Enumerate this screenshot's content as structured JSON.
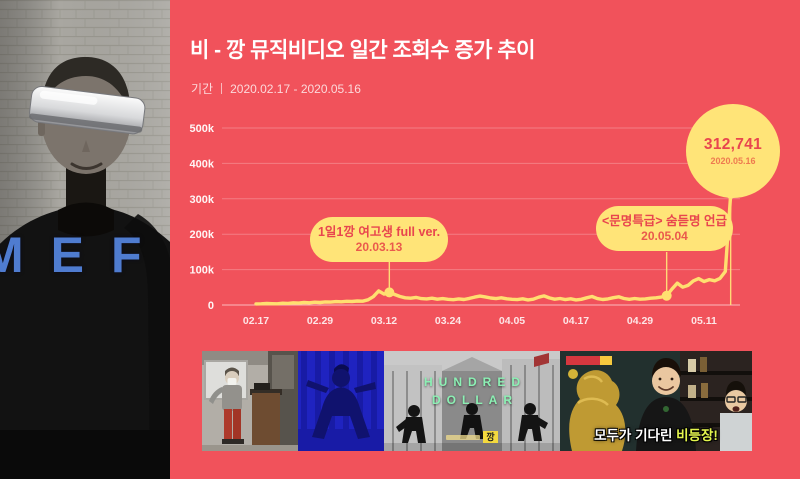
{
  "header": {
    "title": "비 - 깡 뮤직비디오 일간 조회수 증가 추이",
    "period_label": "기간",
    "period_value": "2020.02.17 - 2020.05.16"
  },
  "left_panel": {
    "overlay_letters": "MEF"
  },
  "chart_data": {
    "type": "line",
    "title": "비 - 깡 뮤직비디오 일간 조회수 증가 추이",
    "x_start_date": "2020.02.17",
    "x_end_date": "2020.05.16",
    "x_unit": "day offset from 2020.02.17",
    "x_tick_labels": [
      "02.17",
      "02.29",
      "03.12",
      "03.24",
      "04.05",
      "04.17",
      "04.29",
      "05.11"
    ],
    "x_tick_days": [
      0,
      12,
      24,
      36,
      48,
      60,
      72,
      84
    ],
    "y_tick_labels": [
      "0",
      "100k",
      "200k",
      "300k",
      "400k",
      "500k"
    ],
    "ylim": [
      0,
      500000
    ],
    "grid": true,
    "series": [
      {
        "name": "daily views",
        "values": [
          3200,
          3400,
          4100,
          3800,
          3500,
          5200,
          4600,
          6100,
          5400,
          7000,
          6300,
          7800,
          7200,
          8800,
          8100,
          9600,
          8900,
          10500,
          9800,
          11200,
          10600,
          14800,
          23500,
          39800,
          30900,
          35600,
          29800,
          24100,
          20300,
          19200,
          21400,
          18200,
          17100,
          19300,
          16400,
          18100,
          16200,
          15100,
          17300,
          15400,
          18600,
          22400,
          25100,
          22800,
          19900,
          18100,
          20200,
          17400,
          16100,
          15200,
          17500,
          14300,
          16400,
          21900,
          25800,
          20100,
          16300,
          18400,
          15200,
          17600,
          14400,
          16200,
          20300,
          24100,
          18200,
          15400,
          17300,
          20600,
          23200,
          18400,
          16100,
          18300,
          16400,
          17200,
          19100,
          20400,
          22300,
          26200,
          45300,
          61800,
          50200,
          55400,
          68100,
          74600,
          66300,
          71800,
          68400,
          75200,
          94700,
          312741
        ]
      }
    ],
    "annotations": [
      {
        "type": "callout",
        "lines": [
          "1일1깡 여고생 full ver.",
          "20.03.13"
        ],
        "day": 25,
        "date": "2020.03.13"
      },
      {
        "type": "callout",
        "lines": [
          "<문명특급> 숨듣명 언급",
          "20.05.04"
        ],
        "day": 77,
        "date": "2020.05.04"
      },
      {
        "type": "balloon",
        "value_label": "312,741",
        "date_label": "2020.05.16",
        "day": 89,
        "value": 312741
      }
    ],
    "colors": {
      "background": "#F1525B",
      "line": "#FFDF70",
      "annotation_fill": "#FFE478",
      "annotation_text": "#E8454E",
      "grid": "rgba(255,255,255,0.25)"
    },
    "legend": "none"
  },
  "thumbnails": [
    {
      "name": "classroom dance cover"
    },
    {
      "name": "blue room dance cover"
    },
    {
      "name": "hundred dollar MV scene",
      "title_line1": "HUNDRED",
      "title_line2": "DOLLAR",
      "tag": "깡"
    },
    {
      "name": "variety show Rain appearance",
      "caption_prefix": "모두가 기다린 ",
      "caption_highlight": "비등장!"
    }
  ]
}
